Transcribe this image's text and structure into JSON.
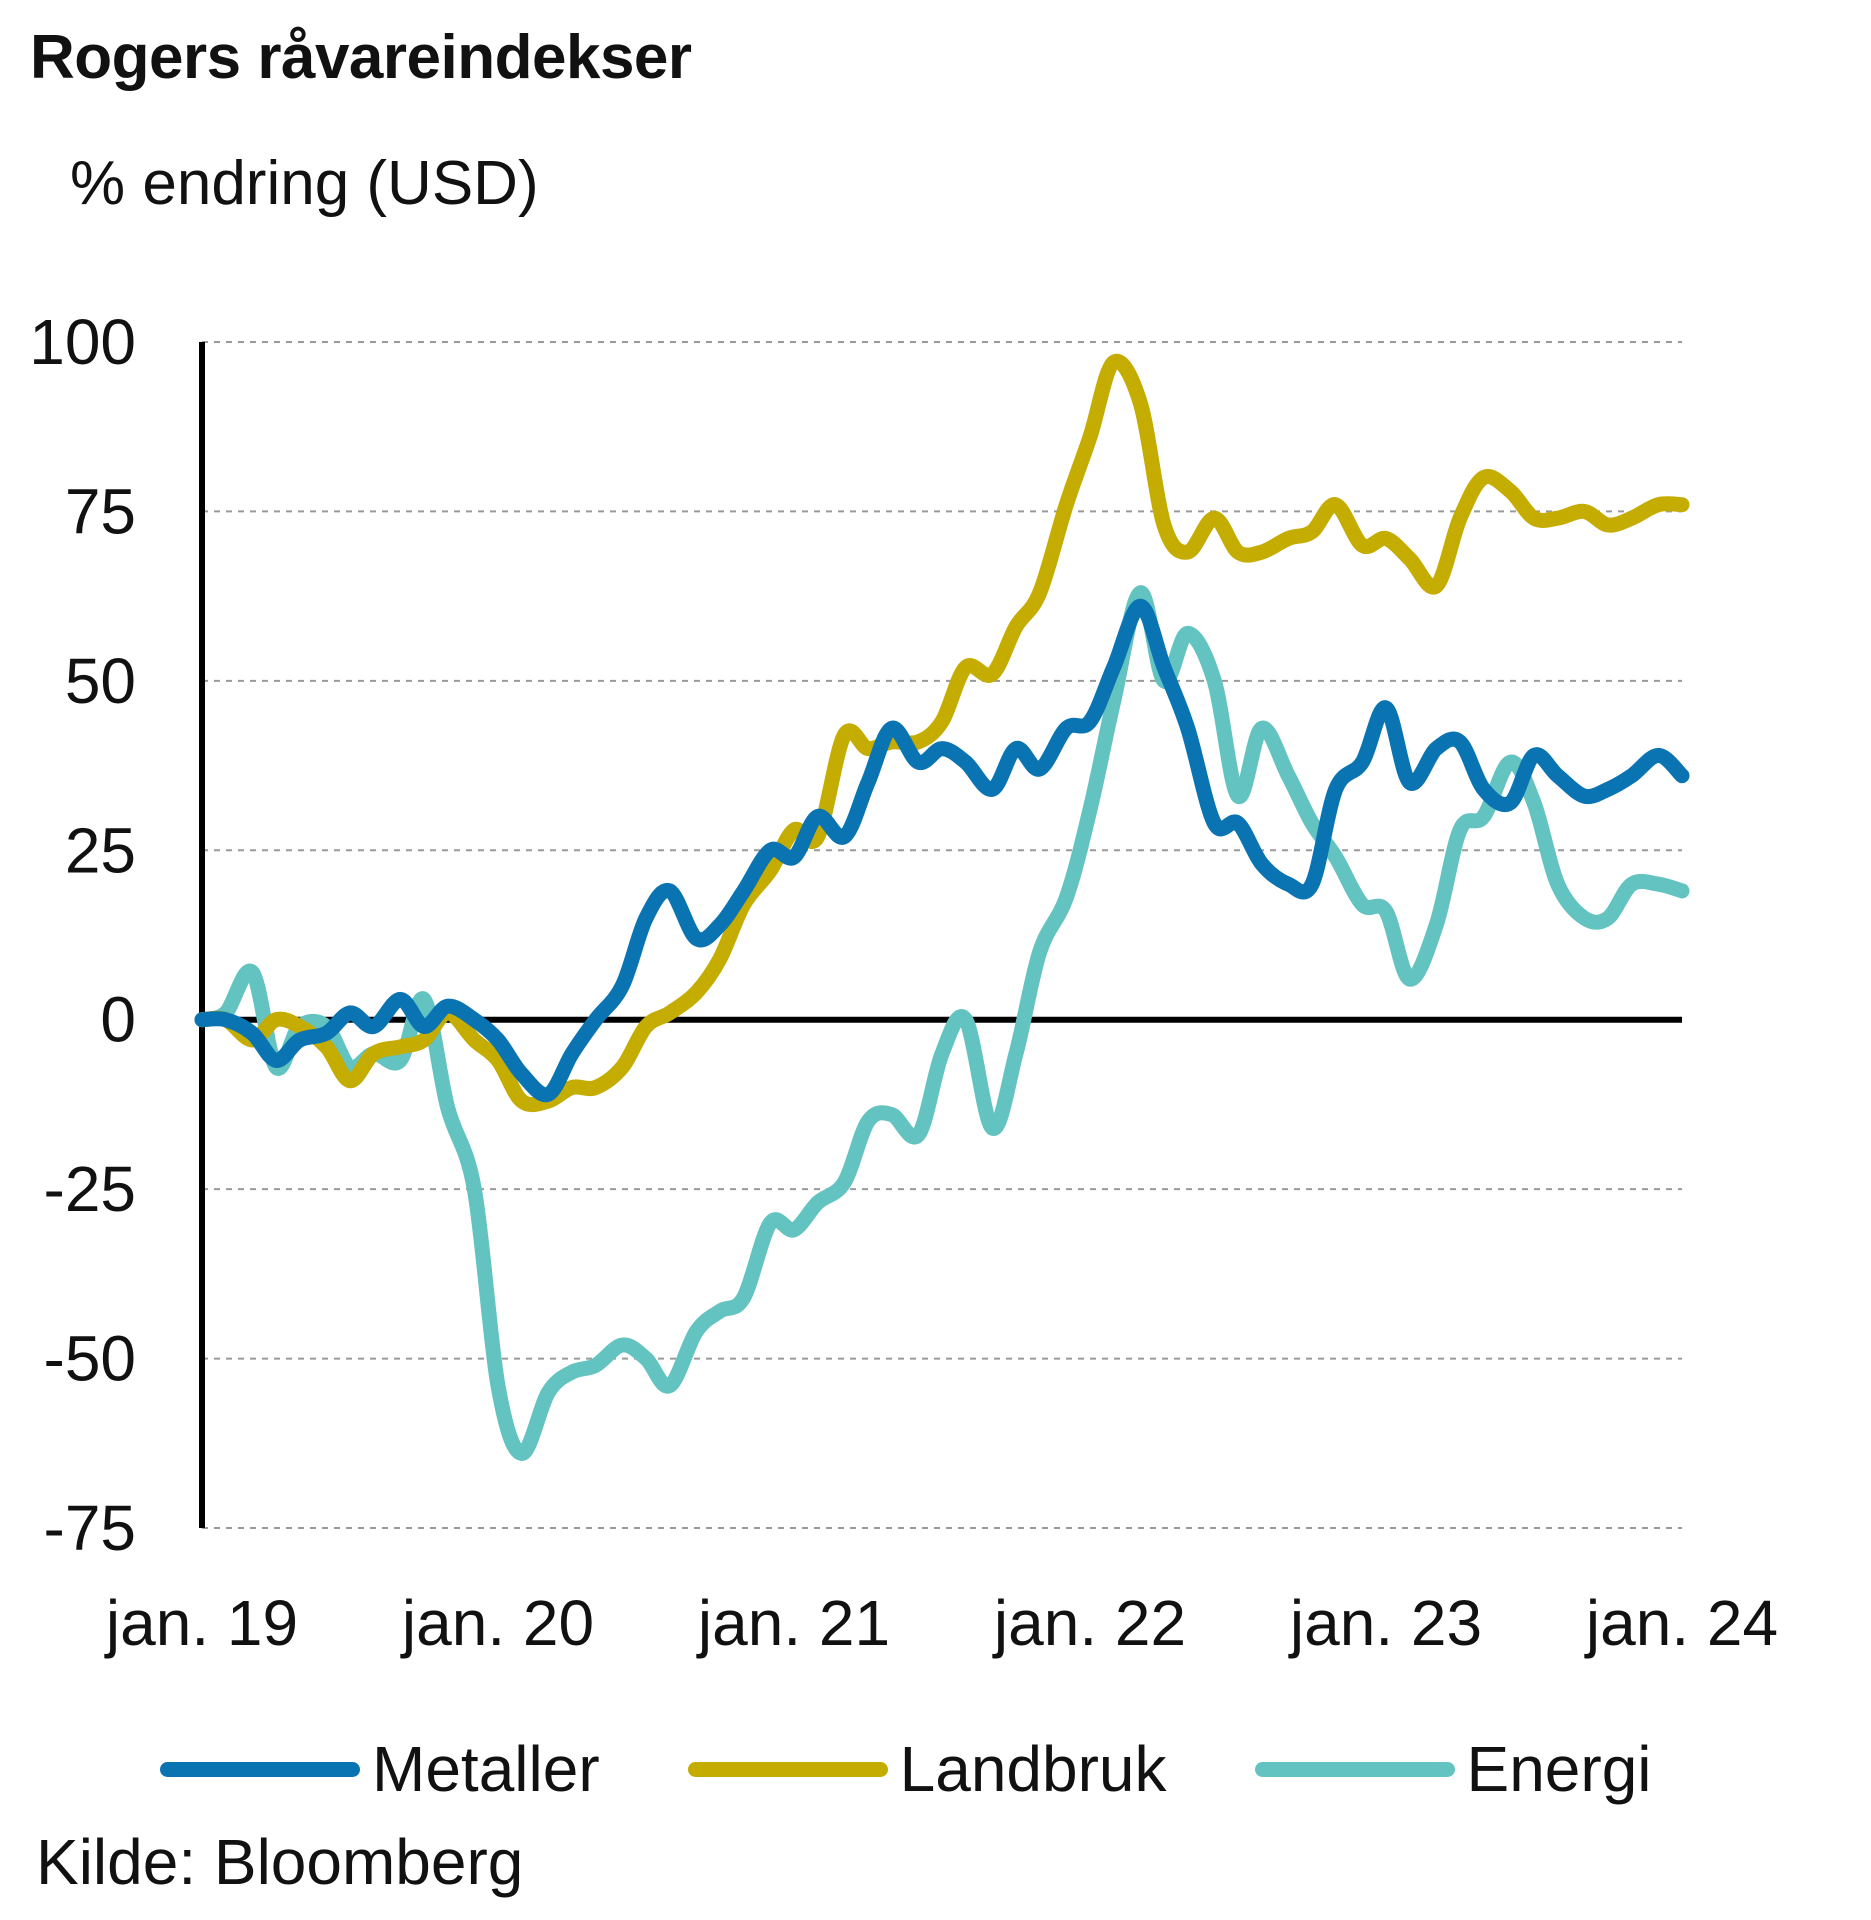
{
  "title": "Rogers råvareindekser",
  "subtitle": "% endring (USD)",
  "source": "Kilde: Bloomberg",
  "chart_data": {
    "type": "line",
    "xlabel": "",
    "ylabel": "% endring (USD)",
    "ylim": [
      -75,
      100
    ],
    "xlim": [
      2019.0,
      2024.0
    ],
    "yticks": [
      100,
      75,
      50,
      25,
      0,
      -25,
      -50,
      -75
    ],
    "ytick_labels": [
      "100",
      "75",
      "50",
      "25",
      "0",
      "-25",
      "-50",
      "-75"
    ],
    "xticks": [
      2019,
      2020,
      2021,
      2022,
      2023,
      2024
    ],
    "xtick_labels": [
      "jan. 19",
      "jan. 20",
      "jan. 21",
      "jan. 22",
      "jan. 23",
      "jan. 24"
    ],
    "grid": true,
    "legend_position": "bottom",
    "series": [
      {
        "name": "Metaller",
        "color": "#0a74b3",
        "points": [
          [
            2019.0,
            0
          ],
          [
            2019.08,
            0
          ],
          [
            2019.17,
            -2
          ],
          [
            2019.25,
            -6
          ],
          [
            2019.33,
            -3
          ],
          [
            2019.42,
            -2
          ],
          [
            2019.5,
            1
          ],
          [
            2019.58,
            -1
          ],
          [
            2019.67,
            3
          ],
          [
            2019.75,
            -1
          ],
          [
            2019.83,
            2
          ],
          [
            2019.92,
            0
          ],
          [
            2020.0,
            -3
          ],
          [
            2020.08,
            -8
          ],
          [
            2020.17,
            -11
          ],
          [
            2020.25,
            -5
          ],
          [
            2020.33,
            0
          ],
          [
            2020.42,
            5
          ],
          [
            2020.5,
            15
          ],
          [
            2020.58,
            19
          ],
          [
            2020.67,
            12
          ],
          [
            2020.75,
            14
          ],
          [
            2020.83,
            19
          ],
          [
            2020.92,
            25
          ],
          [
            2021.0,
            24
          ],
          [
            2021.08,
            30
          ],
          [
            2021.17,
            27
          ],
          [
            2021.25,
            35
          ],
          [
            2021.33,
            43
          ],
          [
            2021.42,
            38
          ],
          [
            2021.5,
            40
          ],
          [
            2021.58,
            38
          ],
          [
            2021.67,
            34
          ],
          [
            2021.75,
            40
          ],
          [
            2021.83,
            37
          ],
          [
            2021.92,
            43
          ],
          [
            2022.0,
            44
          ],
          [
            2022.08,
            52
          ],
          [
            2022.17,
            61
          ],
          [
            2022.25,
            52
          ],
          [
            2022.33,
            43
          ],
          [
            2022.42,
            29
          ],
          [
            2022.5,
            29
          ],
          [
            2022.58,
            23
          ],
          [
            2022.67,
            20
          ],
          [
            2022.75,
            20
          ],
          [
            2022.83,
            34
          ],
          [
            2022.92,
            38
          ],
          [
            2023.0,
            46
          ],
          [
            2023.08,
            35
          ],
          [
            2023.17,
            40
          ],
          [
            2023.25,
            41
          ],
          [
            2023.33,
            34
          ],
          [
            2023.42,
            32
          ],
          [
            2023.5,
            39
          ],
          [
            2023.58,
            36
          ],
          [
            2023.67,
            33
          ],
          [
            2023.75,
            34
          ],
          [
            2023.83,
            36
          ],
          [
            2023.92,
            39
          ],
          [
            2024.0,
            36
          ]
        ]
      },
      {
        "name": "Landbruk",
        "color": "#c5ac00",
        "points": [
          [
            2019.0,
            0
          ],
          [
            2019.08,
            0
          ],
          [
            2019.17,
            -3
          ],
          [
            2019.25,
            0
          ],
          [
            2019.33,
            -1
          ],
          [
            2019.42,
            -4
          ],
          [
            2019.5,
            -9
          ],
          [
            2019.58,
            -5
          ],
          [
            2019.67,
            -4
          ],
          [
            2019.75,
            -3
          ],
          [
            2019.83,
            1
          ],
          [
            2019.92,
            -3
          ],
          [
            2020.0,
            -6
          ],
          [
            2020.08,
            -12
          ],
          [
            2020.17,
            -12
          ],
          [
            2020.25,
            -10
          ],
          [
            2020.33,
            -10
          ],
          [
            2020.42,
            -7
          ],
          [
            2020.5,
            -1
          ],
          [
            2020.58,
            1
          ],
          [
            2020.67,
            4
          ],
          [
            2020.75,
            9
          ],
          [
            2020.83,
            17
          ],
          [
            2020.92,
            22
          ],
          [
            2021.0,
            28
          ],
          [
            2021.08,
            27
          ],
          [
            2021.17,
            42
          ],
          [
            2021.25,
            40
          ],
          [
            2021.33,
            41
          ],
          [
            2021.42,
            41
          ],
          [
            2021.5,
            44
          ],
          [
            2021.58,
            52
          ],
          [
            2021.67,
            51
          ],
          [
            2021.75,
            58
          ],
          [
            2021.83,
            63
          ],
          [
            2021.92,
            76
          ],
          [
            2022.0,
            86
          ],
          [
            2022.08,
            97
          ],
          [
            2022.17,
            91
          ],
          [
            2022.25,
            73
          ],
          [
            2022.33,
            69
          ],
          [
            2022.42,
            74
          ],
          [
            2022.5,
            69
          ],
          [
            2022.58,
            69
          ],
          [
            2022.67,
            71
          ],
          [
            2022.75,
            72
          ],
          [
            2022.83,
            76
          ],
          [
            2022.92,
            70
          ],
          [
            2023.0,
            71
          ],
          [
            2023.08,
            68
          ],
          [
            2023.17,
            64
          ],
          [
            2023.25,
            74
          ],
          [
            2023.33,
            80
          ],
          [
            2023.42,
            78
          ],
          [
            2023.5,
            74
          ],
          [
            2023.58,
            74
          ],
          [
            2023.67,
            75
          ],
          [
            2023.75,
            73
          ],
          [
            2023.83,
            74
          ],
          [
            2023.92,
            76
          ],
          [
            2024.0,
            76
          ]
        ]
      },
      {
        "name": "Energi",
        "color": "#63c3c1",
        "points": [
          [
            2019.0,
            0
          ],
          [
            2019.08,
            1
          ],
          [
            2019.17,
            7
          ],
          [
            2019.25,
            -7
          ],
          [
            2019.33,
            -1
          ],
          [
            2019.42,
            -1
          ],
          [
            2019.5,
            -7
          ],
          [
            2019.58,
            -5
          ],
          [
            2019.67,
            -6
          ],
          [
            2019.75,
            3
          ],
          [
            2019.83,
            -13
          ],
          [
            2019.92,
            -25
          ],
          [
            2020.0,
            -54
          ],
          [
            2020.08,
            -64
          ],
          [
            2020.17,
            -55
          ],
          [
            2020.25,
            -52
          ],
          [
            2020.33,
            -51
          ],
          [
            2020.42,
            -48
          ],
          [
            2020.5,
            -50
          ],
          [
            2020.58,
            -54
          ],
          [
            2020.67,
            -46
          ],
          [
            2020.75,
            -43
          ],
          [
            2020.83,
            -41
          ],
          [
            2020.92,
            -30
          ],
          [
            2021.0,
            -31
          ],
          [
            2021.08,
            -27
          ],
          [
            2021.17,
            -24
          ],
          [
            2021.25,
            -15
          ],
          [
            2021.33,
            -14
          ],
          [
            2021.42,
            -17
          ],
          [
            2021.5,
            -5
          ],
          [
            2021.58,
            0
          ],
          [
            2021.67,
            -16
          ],
          [
            2021.75,
            -5
          ],
          [
            2021.83,
            10
          ],
          [
            2021.92,
            18
          ],
          [
            2022.0,
            31
          ],
          [
            2022.08,
            47
          ],
          [
            2022.17,
            63
          ],
          [
            2022.25,
            50
          ],
          [
            2022.33,
            57
          ],
          [
            2022.42,
            50
          ],
          [
            2022.5,
            33
          ],
          [
            2022.58,
            43
          ],
          [
            2022.67,
            36
          ],
          [
            2022.75,
            29
          ],
          [
            2022.83,
            24
          ],
          [
            2022.92,
            17
          ],
          [
            2023.0,
            16
          ],
          [
            2023.08,
            6
          ],
          [
            2023.17,
            14
          ],
          [
            2023.25,
            28
          ],
          [
            2023.33,
            30
          ],
          [
            2023.42,
            38
          ],
          [
            2023.5,
            32
          ],
          [
            2023.58,
            20
          ],
          [
            2023.67,
            15
          ],
          [
            2023.75,
            15
          ],
          [
            2023.83,
            20
          ],
          [
            2023.92,
            20
          ],
          [
            2024.0,
            19
          ]
        ]
      }
    ]
  }
}
